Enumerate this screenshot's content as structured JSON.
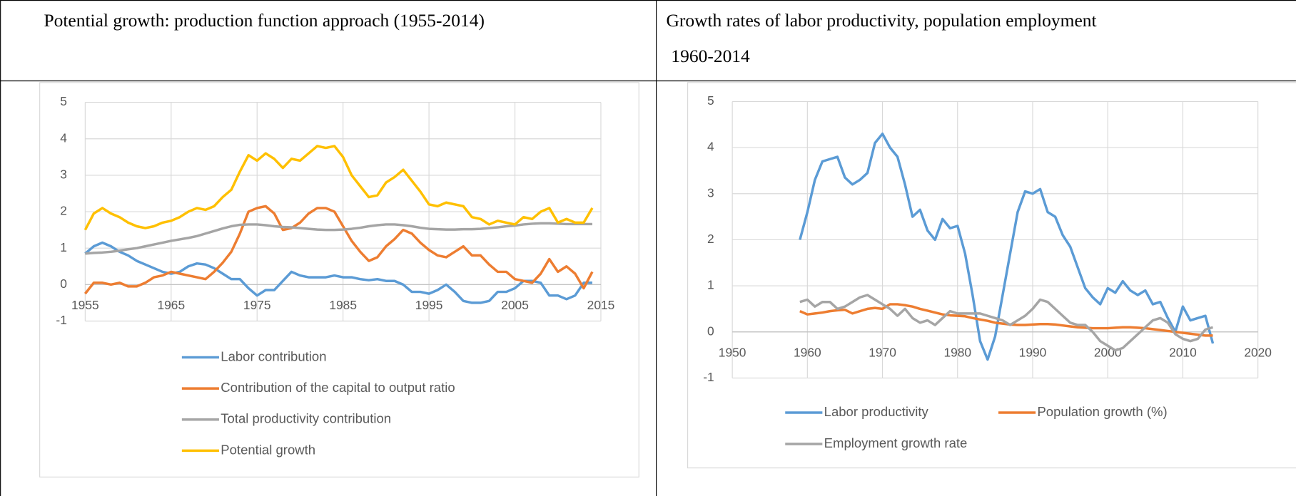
{
  "chart_data": [
    {
      "type": "line",
      "title": "Potential growth: production function approach (1955-2014)",
      "x": [
        1955,
        1956,
        1957,
        1958,
        1959,
        1960,
        1961,
        1962,
        1963,
        1964,
        1965,
        1966,
        1967,
        1968,
        1969,
        1970,
        1971,
        1972,
        1973,
        1974,
        1975,
        1976,
        1977,
        1978,
        1979,
        1980,
        1981,
        1982,
        1983,
        1984,
        1985,
        1986,
        1987,
        1988,
        1989,
        1990,
        1991,
        1992,
        1993,
        1994,
        1995,
        1996,
        1997,
        1998,
        1999,
        2000,
        2001,
        2002,
        2003,
        2004,
        2005,
        2006,
        2007,
        2008,
        2009,
        2010,
        2011,
        2012,
        2013,
        2014
      ],
      "series": [
        {
          "name": "Labor contribution",
          "color": "#5b9bd5",
          "values": [
            0.85,
            1.05,
            1.15,
            1.05,
            0.9,
            0.8,
            0.65,
            0.55,
            0.45,
            0.35,
            0.3,
            0.35,
            0.5,
            0.58,
            0.55,
            0.45,
            0.3,
            0.15,
            0.15,
            -0.1,
            -0.3,
            -0.15,
            -0.15,
            0.1,
            0.35,
            0.25,
            0.2,
            0.2,
            0.2,
            0.25,
            0.2,
            0.2,
            0.15,
            0.12,
            0.15,
            0.1,
            0.1,
            0,
            -0.2,
            -0.2,
            -0.25,
            -0.15,
            0,
            -0.2,
            -0.45,
            -0.5,
            -0.5,
            -0.45,
            -0.2,
            -0.2,
            -0.1,
            0.1,
            0.1,
            0.05,
            -0.3,
            -0.3,
            -0.4,
            -0.3,
            0.05,
            0.05
          ]
        },
        {
          "name": "Contribution of the capital to output ratio",
          "color": "#ed7d31",
          "values": [
            -0.25,
            0.05,
            0.05,
            0,
            0.05,
            -0.05,
            -0.05,
            0.05,
            0.2,
            0.25,
            0.35,
            0.3,
            0.25,
            0.2,
            0.15,
            0.35,
            0.6,
            0.9,
            1.4,
            2.0,
            2.1,
            2.15,
            1.95,
            1.5,
            1.55,
            1.7,
            1.95,
            2.1,
            2.1,
            2.0,
            1.6,
            1.2,
            0.9,
            0.65,
            0.75,
            1.05,
            1.25,
            1.5,
            1.4,
            1.15,
            0.95,
            0.8,
            0.75,
            0.9,
            1.05,
            0.8,
            0.8,
            0.55,
            0.35,
            0.35,
            0.15,
            0.1,
            0.05,
            0.3,
            0.7,
            0.35,
            0.5,
            0.3,
            -0.1,
            0.35
          ]
        },
        {
          "name": "Total productivity contribution",
          "color": "#a5a5a5",
          "values": [
            0.85,
            0.87,
            0.88,
            0.9,
            0.93,
            0.97,
            1.0,
            1.05,
            1.1,
            1.15,
            1.2,
            1.24,
            1.28,
            1.33,
            1.4,
            1.47,
            1.54,
            1.6,
            1.64,
            1.65,
            1.65,
            1.63,
            1.6,
            1.58,
            1.57,
            1.55,
            1.53,
            1.51,
            1.5,
            1.5,
            1.51,
            1.53,
            1.56,
            1.6,
            1.63,
            1.65,
            1.65,
            1.63,
            1.6,
            1.56,
            1.53,
            1.52,
            1.51,
            1.51,
            1.52,
            1.52,
            1.53,
            1.55,
            1.57,
            1.6,
            1.62,
            1.65,
            1.67,
            1.68,
            1.68,
            1.67,
            1.66,
            1.66,
            1.66,
            1.66
          ]
        },
        {
          "name": "Potential growth",
          "color": "#ffc000",
          "values": [
            1.5,
            1.95,
            2.1,
            1.95,
            1.85,
            1.7,
            1.6,
            1.55,
            1.6,
            1.7,
            1.75,
            1.85,
            2.0,
            2.1,
            2.05,
            2.15,
            2.4,
            2.6,
            3.1,
            3.55,
            3.4,
            3.6,
            3.45,
            3.2,
            3.45,
            3.4,
            3.6,
            3.8,
            3.75,
            3.8,
            3.5,
            3.0,
            2.7,
            2.4,
            2.45,
            2.8,
            2.95,
            3.15,
            2.85,
            2.55,
            2.2,
            2.15,
            2.25,
            2.2,
            2.15,
            1.85,
            1.8,
            1.65,
            1.75,
            1.7,
            1.65,
            1.85,
            1.8,
            2.0,
            2.1,
            1.7,
            1.8,
            1.7,
            1.7,
            2.1
          ]
        }
      ],
      "xlim": [
        1955,
        2015
      ],
      "xticks": [
        1955,
        1965,
        1975,
        1985,
        1995,
        2005,
        2015
      ],
      "ylim": [
        -1,
        5
      ],
      "yticks": [
        -1,
        0,
        1,
        2,
        3,
        4,
        5
      ],
      "grid": true
    },
    {
      "type": "line",
      "title": "Growth rates of labor productivity, population employment",
      "subtitle": "1960-2014",
      "x": [
        1959,
        1960,
        1961,
        1962,
        1963,
        1964,
        1965,
        1966,
        1967,
        1968,
        1969,
        1970,
        1971,
        1972,
        1973,
        1974,
        1975,
        1976,
        1977,
        1978,
        1979,
        1980,
        1981,
        1982,
        1983,
        1984,
        1985,
        1986,
        1987,
        1988,
        1989,
        1990,
        1991,
        1992,
        1993,
        1994,
        1995,
        1996,
        1997,
        1998,
        1999,
        2000,
        2001,
        2002,
        2003,
        2004,
        2005,
        2006,
        2007,
        2008,
        2009,
        2010,
        2011,
        2012,
        2013,
        2014
      ],
      "series": [
        {
          "name": "Labor productivity",
          "color": "#5b9bd5",
          "values": [
            2.0,
            2.6,
            3.3,
            3.7,
            3.75,
            3.8,
            3.35,
            3.2,
            3.3,
            3.45,
            4.1,
            4.3,
            4.0,
            3.8,
            3.2,
            2.5,
            2.65,
            2.2,
            2.0,
            2.45,
            2.25,
            2.3,
            1.7,
            0.8,
            -0.2,
            -0.6,
            -0.1,
            0.8,
            1.7,
            2.6,
            3.05,
            3.0,
            3.1,
            2.6,
            2.5,
            2.1,
            1.85,
            1.4,
            0.95,
            0.75,
            0.6,
            0.95,
            0.85,
            1.1,
            0.9,
            0.8,
            0.9,
            0.6,
            0.65,
            0.3,
            0,
            0.55,
            0.25,
            0.3,
            0.35,
            -0.25
          ]
        },
        {
          "name": "Population growth (%)",
          "color": "#ed7d31",
          "values": [
            0.45,
            0.38,
            0.4,
            0.42,
            0.45,
            0.47,
            0.48,
            0.4,
            0.45,
            0.5,
            0.52,
            0.5,
            0.6,
            0.6,
            0.58,
            0.55,
            0.5,
            0.46,
            0.42,
            0.38,
            0.36,
            0.35,
            0.34,
            0.3,
            0.27,
            0.24,
            0.2,
            0.18,
            0.16,
            0.15,
            0.15,
            0.16,
            0.17,
            0.17,
            0.16,
            0.14,
            0.12,
            0.1,
            0.09,
            0.08,
            0.08,
            0.08,
            0.09,
            0.1,
            0.1,
            0.09,
            0.08,
            0.06,
            0.04,
            0.02,
            0,
            -0.02,
            -0.04,
            -0.06,
            -0.08,
            -0.08
          ]
        },
        {
          "name": "Employment growth rate",
          "color": "#a5a5a5",
          "values": [
            0.65,
            0.7,
            0.55,
            0.65,
            0.65,
            0.5,
            0.55,
            0.65,
            0.75,
            0.8,
            0.7,
            0.6,
            0.5,
            0.35,
            0.5,
            0.3,
            0.2,
            0.25,
            0.15,
            0.3,
            0.45,
            0.4,
            0.4,
            0.4,
            0.4,
            0.35,
            0.3,
            0.25,
            0.15,
            0.25,
            0.35,
            0.5,
            0.7,
            0.65,
            0.5,
            0.35,
            0.2,
            0.15,
            0.15,
            0,
            -0.2,
            -0.3,
            -0.4,
            -0.35,
            -0.2,
            -0.05,
            0.1,
            0.25,
            0.3,
            0.2,
            -0.05,
            -0.15,
            -0.2,
            -0.15,
            0.05,
            0.1
          ]
        }
      ],
      "xlim": [
        1950,
        2020
      ],
      "xticks": [
        1950,
        1960,
        1970,
        1980,
        1990,
        2000,
        2010,
        2020
      ],
      "ylim": [
        -1,
        5
      ],
      "yticks": [
        -1,
        0,
        1,
        2,
        3,
        4,
        5
      ],
      "grid": true
    }
  ]
}
